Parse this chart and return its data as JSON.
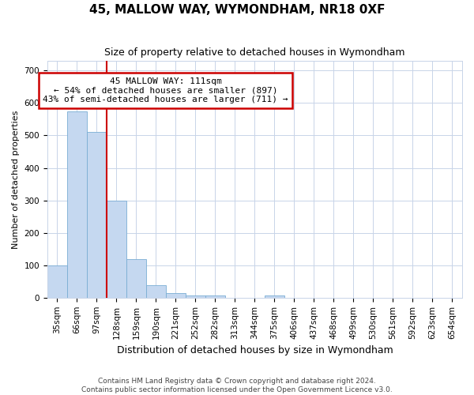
{
  "title": "45, MALLOW WAY, WYMONDHAM, NR18 0XF",
  "subtitle": "Size of property relative to detached houses in Wymondham",
  "xlabel": "Distribution of detached houses by size in Wymondham",
  "ylabel": "Number of detached properties",
  "footer_line1": "Contains HM Land Registry data © Crown copyright and database right 2024.",
  "footer_line2": "Contains public sector information licensed under the Open Government Licence v3.0.",
  "bin_labels": [
    "35sqm",
    "66sqm",
    "97sqm",
    "128sqm",
    "159sqm",
    "190sqm",
    "221sqm",
    "252sqm",
    "282sqm",
    "313sqm",
    "344sqm",
    "375sqm",
    "406sqm",
    "437sqm",
    "468sqm",
    "499sqm",
    "530sqm",
    "561sqm",
    "592sqm",
    "623sqm",
    "654sqm"
  ],
  "bar_values": [
    100,
    575,
    510,
    300,
    118,
    38,
    15,
    8,
    6,
    0,
    0,
    6,
    0,
    0,
    0,
    0,
    0,
    0,
    0,
    0,
    0
  ],
  "bar_color": "#c5d8f0",
  "bar_edge_color": "#7aadd4",
  "ylim": [
    0,
    730
  ],
  "yticks": [
    0,
    100,
    200,
    300,
    400,
    500,
    600,
    700
  ],
  "red_line_color": "#cc0000",
  "red_line_x": 2.5,
  "annotation_text": "45 MALLOW WAY: 111sqm\n← 54% of detached houses are smaller (897)\n43% of semi-detached houses are larger (711) →",
  "annotation_box_color": "#ffffff",
  "annotation_box_edge": "#cc0000",
  "grid_color": "#c8d4e8",
  "background_color": "#ffffff",
  "plot_bg_color": "#ffffff",
  "title_fontsize": 11,
  "subtitle_fontsize": 9,
  "ylabel_fontsize": 8,
  "xlabel_fontsize": 9,
  "tick_fontsize": 7.5,
  "annotation_fontsize": 8,
  "footer_fontsize": 6.5
}
